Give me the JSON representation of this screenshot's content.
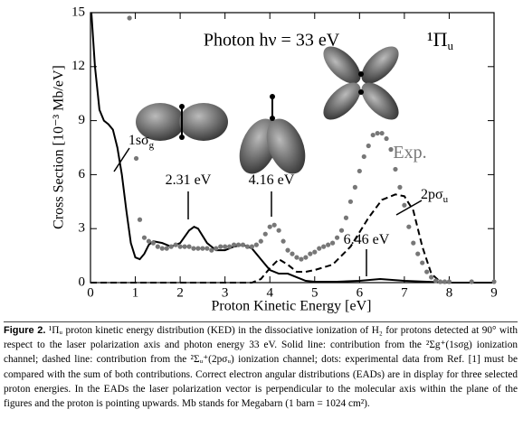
{
  "chart_data": {
    "type": "line",
    "title": "Photon hν = 33 eV",
    "symmetry": {
      "text": "¹Π",
      "sub": "u"
    },
    "xlabel": "Proton Kinetic Energy [eV]",
    "ylabel": "Cross Section [10⁻³ Mb/eV]",
    "xlim": [
      0,
      9
    ],
    "ylim": [
      0,
      15
    ],
    "xticks": [
      0,
      1,
      2,
      3,
      4,
      5,
      6,
      7,
      8,
      9
    ],
    "yticks": [
      0,
      3,
      6,
      9,
      12,
      15
    ],
    "series": [
      {
        "style": "solid",
        "color": "#000000",
        "x": [
          0.02,
          0.1,
          0.2,
          0.3,
          0.4,
          0.5,
          0.6,
          0.7,
          0.8,
          0.9,
          1.0,
          1.1,
          1.2,
          1.3,
          1.4,
          1.6,
          1.8,
          2.0,
          2.2,
          2.31,
          2.4,
          2.6,
          2.8,
          3.0,
          3.2,
          3.4,
          3.6,
          3.8,
          4.0,
          4.2,
          4.4,
          4.6,
          4.8,
          5.0,
          5.5,
          6.0,
          6.46,
          7.0,
          7.5,
          8.0,
          9.0
        ],
        "values": [
          15,
          12,
          9.6,
          9.0,
          8.8,
          8.5,
          7.5,
          6.0,
          4.0,
          2.2,
          1.4,
          1.3,
          1.6,
          2.1,
          2.3,
          2.2,
          2.0,
          2.2,
          2.9,
          3.1,
          3.0,
          2.2,
          1.8,
          1.8,
          2.0,
          2.1,
          1.9,
          1.3,
          0.7,
          0.5,
          0.5,
          0.3,
          0.1,
          0.05,
          0.05,
          0.1,
          0.2,
          0.1,
          0.05,
          0,
          0
        ]
      },
      {
        "style": "dashed",
        "color": "#000000",
        "x": [
          0,
          3.6,
          3.8,
          4.0,
          4.2,
          4.4,
          4.6,
          4.8,
          5.0,
          5.4,
          5.8,
          6.2,
          6.5,
          6.8,
          7.0,
          7.2,
          7.4,
          7.6,
          7.8,
          8.0,
          9.0
        ],
        "values": [
          0,
          0,
          0.2,
          0.8,
          1.3,
          1.0,
          0.6,
          0.6,
          0.7,
          1.0,
          2.0,
          3.6,
          4.6,
          4.9,
          4.8,
          4.0,
          2.0,
          0.5,
          0.05,
          0,
          0
        ]
      },
      {
        "style": "dots",
        "color": "#777777",
        "x": [
          0.87,
          1.02,
          1.1,
          1.2,
          1.3,
          1.4,
          1.5,
          1.6,
          1.7,
          1.8,
          1.9,
          2.0,
          2.1,
          2.2,
          2.3,
          2.4,
          2.5,
          2.6,
          2.7,
          2.8,
          2.9,
          3.0,
          3.1,
          3.2,
          3.3,
          3.4,
          3.5,
          3.6,
          3.7,
          3.8,
          3.9,
          4.0,
          4.1,
          4.2,
          4.3,
          4.4,
          4.5,
          4.6,
          4.7,
          4.8,
          4.9,
          5.0,
          5.1,
          5.2,
          5.3,
          5.4,
          5.5,
          5.6,
          5.7,
          5.8,
          5.9,
          6.0,
          6.1,
          6.2,
          6.3,
          6.4,
          6.5,
          6.6,
          6.7,
          6.8,
          6.9,
          7.0,
          7.1,
          7.2,
          7.3,
          7.4,
          7.5,
          7.6,
          7.7,
          7.8,
          7.9,
          8.0,
          8.5,
          9.0
        ],
        "values": [
          14.7,
          6.9,
          3.5,
          2.5,
          2.3,
          2.2,
          2.0,
          1.9,
          1.9,
          2.0,
          2.1,
          2.0,
          2.0,
          2.0,
          1.9,
          1.9,
          1.9,
          1.9,
          1.8,
          1.9,
          2.0,
          2.0,
          2.0,
          2.1,
          2.1,
          2.1,
          2.0,
          2.0,
          2.1,
          2.3,
          2.7,
          3.1,
          3.2,
          2.9,
          2.3,
          1.8,
          1.6,
          1.4,
          1.3,
          1.4,
          1.6,
          1.7,
          1.9,
          2.0,
          2.1,
          2.2,
          2.5,
          2.9,
          3.6,
          4.5,
          5.3,
          6.2,
          7.0,
          7.6,
          8.2,
          8.3,
          8.3,
          8.0,
          7.4,
          6.3,
          5.3,
          4.3,
          3.1,
          2.2,
          1.6,
          1.1,
          0.6,
          0.3,
          0.1,
          0.05,
          0.05,
          0.05,
          0.05,
          0.05
        ]
      }
    ],
    "annotations": [
      {
        "text": "2.31 eV"
      },
      {
        "text": "4.16 eV"
      },
      {
        "text": "6.46 eV"
      },
      {
        "text": "Exp."
      },
      {
        "text": "1sσ",
        "sub": "g"
      },
      {
        "text": "2pσ",
        "sub": "u"
      }
    ]
  },
  "caption": {
    "label": "Figure 2.",
    "text": "¹Πᵤ proton kinetic energy distribution (KED) in the dissociative ionization of H₂ for protons detected at 90° with respect to the laser polarization axis and photon energy 33 eV. Solid line: contribution from the ²Σg⁺(1sσg) ionization channel; dashed line: contribution from the ²Σᵤ⁺(2pσᵤ) ionization channel; dots: experimental data from Ref. [1] must be compared with the sum of both contributions. Correct electron angular distributions (EADs) are in display for three selected proton energies. In the EADs the laser polarization vector is perpendicular to the molecular axis within the plane of the figures and the proton is pointing upwards. Mb stands for Megabarn (1 barn = 1024 cm²)."
  }
}
